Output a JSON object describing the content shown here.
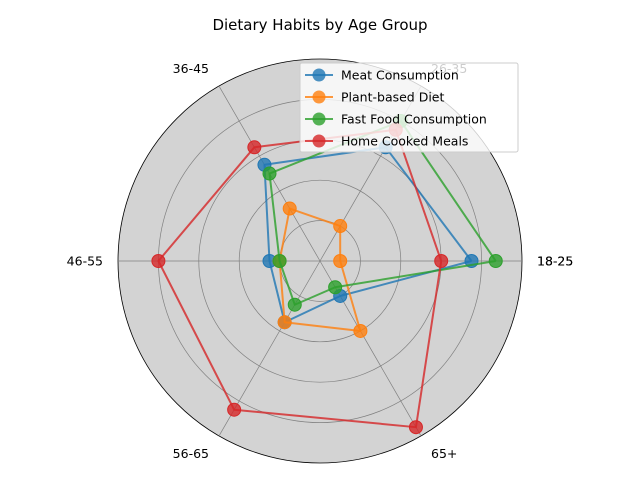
{
  "chart_data": {
    "type": "radar",
    "title": "Dietary Habits by Age Group",
    "categories": [
      "18-25",
      "26-35",
      "36-45",
      "46-55",
      "56-65",
      "65+"
    ],
    "closing_category_label": "18-25",
    "rmax": 100,
    "grid": true,
    "grid_levels": [
      20,
      40,
      60,
      80,
      100
    ],
    "legend_position": "upper-right",
    "series": [
      {
        "name": "Meat Consumption",
        "color": "#1f77b4",
        "values": [
          75,
          65,
          55,
          25,
          35,
          20
        ]
      },
      {
        "name": "Plant-based Diet",
        "color": "#ff7f0e",
        "values": [
          10,
          20,
          30,
          20,
          35,
          40
        ]
      },
      {
        "name": "Fast Food Consumption",
        "color": "#2ca02c",
        "values": [
          87,
          80,
          50,
          20,
          25,
          15
        ]
      },
      {
        "name": "Home Cooked Meals",
        "color": "#d62728",
        "values": [
          60,
          75,
          65,
          80,
          85,
          95
        ]
      }
    ]
  }
}
